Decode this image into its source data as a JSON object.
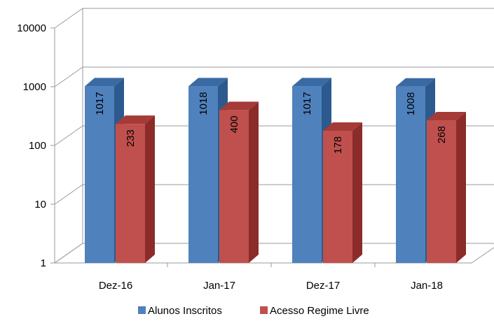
{
  "chart_data": {
    "type": "bar",
    "title": "",
    "xlabel": "",
    "ylabel": "",
    "y_scale": "log",
    "ylim": [
      1,
      10000
    ],
    "y_ticks": [
      "1",
      "10",
      "100",
      "1000",
      "10000"
    ],
    "grid": true,
    "legend_position": "bottom",
    "style": "3d-clustered-column",
    "categories": [
      "Dez-16",
      "Jan-17",
      "Dez-17",
      "Jan-18"
    ],
    "series": [
      {
        "name": "Alunos Inscritos",
        "values": [
          1017,
          1018,
          1017,
          1008
        ],
        "color": "#4F81BD",
        "side_color": "#2D5A8E",
        "top_color": "#3A6AA3"
      },
      {
        "name": "Acesso Regime Livre",
        "values": [
          233,
          400,
          178,
          268
        ],
        "color": "#C0504D",
        "side_color": "#8B2C2A",
        "top_color": "#A63A37"
      }
    ]
  }
}
